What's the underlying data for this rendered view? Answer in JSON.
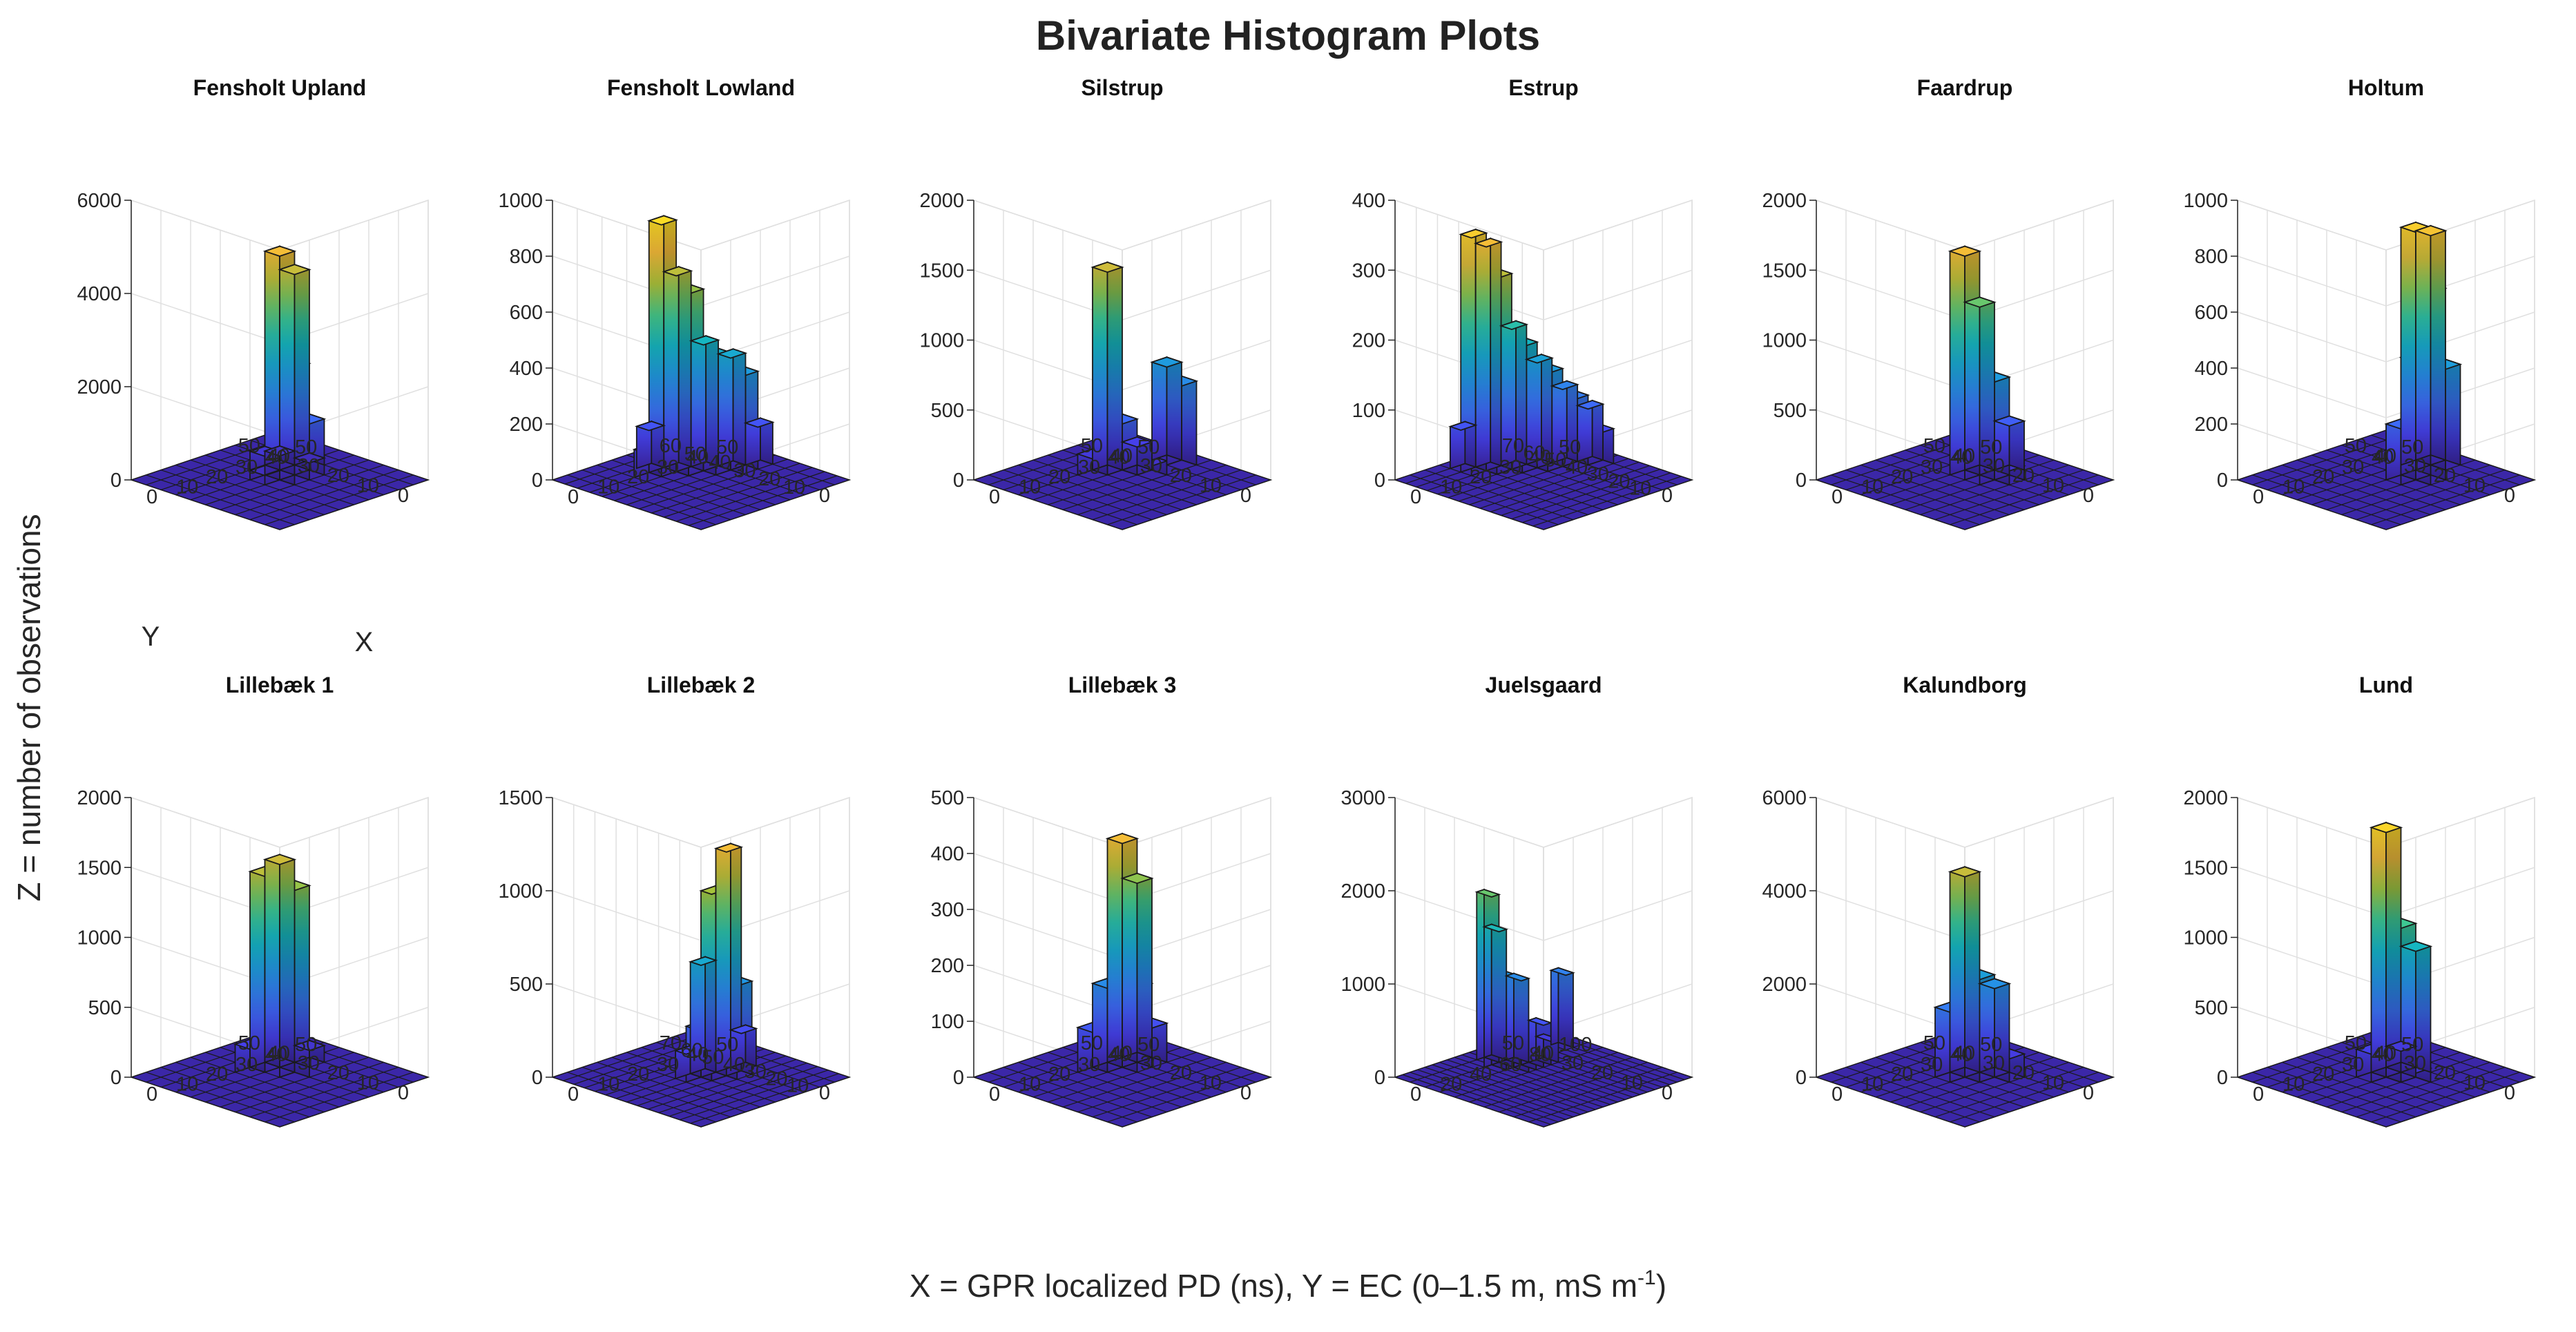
{
  "chart_data": {
    "type": "bar3d",
    "title": "Bivariate Histogram Plots",
    "xlabel": "X = GPR localized PD (ns), Y = EC (0–1.5 m, mS m",
    "xlabel_sup": "-1",
    "xlabel_close": ")",
    "ylabel": "Z = number of observations",
    "colormap": [
      "#3e26a8",
      "#4743f2",
      "#3b74f7",
      "#2196e2",
      "#14b5c4",
      "#40c98f",
      "#a6c33b",
      "#f2b63b",
      "#fbd927",
      "#f9fb0e"
    ],
    "surface_color": "#3b27a8",
    "panels": [
      {
        "title": "Fensholt Upland",
        "zlim": [
          0,
          6000
        ],
        "zticks": [
          0,
          2000,
          4000,
          6000
        ],
        "xticks": [
          0,
          10,
          20,
          30,
          40,
          50
        ],
        "yticks": [
          0,
          10,
          20,
          30,
          40,
          50
        ],
        "grid_n": [
          10,
          10
        ],
        "axis_letters": {
          "x": "X",
          "y": "Y"
        },
        "bars": [
          [
            5,
            5,
            4800
          ],
          [
            6,
            5,
            4300
          ],
          [
            5,
            4,
            2500
          ],
          [
            6,
            4,
            1200
          ],
          [
            4,
            5,
            200
          ],
          [
            5,
            6,
            400
          ],
          [
            4,
            4,
            250
          ],
          [
            6,
            6,
            300
          ],
          [
            7,
            5,
            150
          ]
        ]
      },
      {
        "title": "Fensholt Lowland",
        "zlim": [
          0,
          1000
        ],
        "zticks": [
          0,
          200,
          400,
          600,
          800,
          1000
        ],
        "xticks": [
          0,
          10,
          20,
          30,
          40,
          50
        ],
        "yticks": [
          0,
          10,
          20,
          30,
          40,
          50,
          60
        ],
        "grid_n": [
          10,
          12
        ],
        "bars": [
          [
            4,
            8,
            900
          ],
          [
            5,
            8,
            700
          ],
          [
            5,
            7,
            650
          ],
          [
            4,
            7,
            300
          ],
          [
            6,
            7,
            450
          ],
          [
            6,
            6,
            420
          ],
          [
            7,
            6,
            400
          ],
          [
            7,
            5,
            350
          ],
          [
            6,
            5,
            200
          ],
          [
            8,
            5,
            150
          ],
          [
            5,
            6,
            100
          ],
          [
            4,
            9,
            150
          ],
          [
            3,
            8,
            100
          ]
        ]
      },
      {
        "title": "Silstrup",
        "zlim": [
          0,
          2000
        ],
        "zticks": [
          0,
          500,
          1000,
          1500,
          2000
        ],
        "xticks": [
          0,
          10,
          20,
          30,
          40,
          50
        ],
        "yticks": [
          0,
          10,
          20,
          30,
          40,
          50
        ],
        "grid_n": [
          10,
          10
        ],
        "bars": [
          [
            5,
            6,
            1450
          ],
          [
            5,
            5,
            400
          ],
          [
            6,
            5,
            200
          ],
          [
            8,
            5,
            700
          ],
          [
            8,
            4,
            600
          ],
          [
            4,
            6,
            150
          ],
          [
            6,
            4,
            100
          ]
        ]
      },
      {
        "title": "Estrup",
        "zlim": [
          0,
          400
        ],
        "zticks": [
          0,
          100,
          200,
          300,
          400
        ],
        "xticks": [
          0,
          10,
          20,
          30,
          40,
          50
        ],
        "yticks": [
          0,
          10,
          20,
          30,
          40,
          50,
          60,
          70
        ],
        "grid_n": [
          10,
          14
        ],
        "bars": [
          [
            3,
            11,
            340
          ],
          [
            4,
            11,
            320
          ],
          [
            4,
            10,
            280
          ],
          [
            3,
            10,
            230
          ],
          [
            5,
            10,
            200
          ],
          [
            5,
            9,
            180
          ],
          [
            6,
            9,
            150
          ],
          [
            6,
            8,
            140
          ],
          [
            4,
            9,
            120
          ],
          [
            7,
            8,
            110
          ],
          [
            7,
            7,
            100
          ],
          [
            8,
            7,
            80
          ],
          [
            6,
            7,
            70
          ],
          [
            5,
            8,
            60
          ],
          [
            3,
            12,
            60
          ],
          [
            8,
            6,
            50
          ]
        ]
      },
      {
        "title": "Faardrup",
        "zlim": [
          0,
          2000
        ],
        "zticks": [
          0,
          500,
          1000,
          1500,
          2000
        ],
        "xticks": [
          0,
          10,
          20,
          30,
          40,
          50
        ],
        "yticks": [
          0,
          10,
          20,
          30,
          40,
          50
        ],
        "grid_n": [
          10,
          10
        ],
        "bars": [
          [
            5,
            5,
            1600
          ],
          [
            6,
            5,
            1200
          ],
          [
            6,
            4,
            700
          ],
          [
            5,
            4,
            450
          ],
          [
            7,
            4,
            350
          ],
          [
            5,
            3,
            150
          ],
          [
            6,
            3,
            100
          ]
        ]
      },
      {
        "title": "Holtum",
        "zlim": [
          0,
          1000
        ],
        "zticks": [
          0,
          200,
          400,
          600,
          800,
          1000
        ],
        "xticks": [
          0,
          10,
          20,
          30,
          40,
          50
        ],
        "yticks": [
          0,
          10,
          20,
          30,
          40,
          50
        ],
        "grid_n": [
          10,
          10
        ],
        "bars": [
          [
            7,
            5,
            850
          ],
          [
            8,
            5,
            820
          ],
          [
            7,
            4,
            650
          ],
          [
            6,
            4,
            420
          ],
          [
            8,
            4,
            360
          ],
          [
            5,
            4,
            200
          ],
          [
            6,
            3,
            150
          ],
          [
            5,
            3,
            100
          ]
        ]
      },
      {
        "title": "Lillebæk 1",
        "zlim": [
          0,
          2000
        ],
        "zticks": [
          0,
          500,
          1000,
          1500,
          2000
        ],
        "xticks": [
          0,
          10,
          20,
          30,
          40,
          50
        ],
        "yticks": [
          0,
          10,
          20,
          30,
          40,
          50
        ],
        "grid_n": [
          10,
          10
        ],
        "bars": [
          [
            5,
            6,
            1400
          ],
          [
            6,
            6,
            1450
          ],
          [
            6,
            5,
            1300
          ],
          [
            5,
            5,
            700
          ],
          [
            4,
            6,
            200
          ],
          [
            5,
            4,
            150
          ],
          [
            7,
            5,
            120
          ]
        ]
      },
      {
        "title": "Lillebæk 2",
        "zlim": [
          0,
          1500
        ],
        "zticks": [
          0,
          500,
          1000,
          1500
        ],
        "xticks": [
          0,
          10,
          20,
          30,
          40,
          50
        ],
        "yticks": [
          0,
          10,
          20,
          30,
          40,
          50,
          60,
          70
        ],
        "grid_n": [
          10,
          14
        ],
        "bars": [
          [
            6,
            6,
            1200
          ],
          [
            5,
            6,
            1000
          ],
          [
            5,
            7,
            600
          ],
          [
            6,
            5,
            500
          ],
          [
            4,
            6,
            300
          ],
          [
            5,
            5,
            250
          ],
          [
            7,
            6,
            200
          ],
          [
            4,
            7,
            150
          ]
        ]
      },
      {
        "title": "Lillebæk 3",
        "zlim": [
          0,
          500
        ],
        "zticks": [
          0,
          100,
          200,
          300,
          400,
          500
        ],
        "xticks": [
          0,
          10,
          20,
          30,
          40,
          50
        ],
        "yticks": [
          0,
          10,
          20,
          30,
          40,
          50
        ],
        "grid_n": [
          10,
          10
        ],
        "bars": [
          [
            6,
            6,
            400
          ],
          [
            7,
            6,
            320
          ],
          [
            6,
            5,
            150
          ],
          [
            5,
            6,
            150
          ],
          [
            4,
            6,
            80
          ],
          [
            7,
            5,
            70
          ],
          [
            5,
            5,
            60
          ]
        ]
      },
      {
        "title": "Juelsgaard",
        "zlim": [
          0,
          3000
        ],
        "zticks": [
          0,
          1000,
          2000,
          3000
        ],
        "xticks": [
          0,
          20,
          40,
          60,
          80,
          100
        ],
        "yticks": [
          0,
          10,
          20,
          30,
          40,
          50
        ],
        "grid_n": [
          20,
          10
        ],
        "bars": [
          [
            9,
            8,
            1800
          ],
          [
            10,
            8,
            1400
          ],
          [
            9,
            7,
            1000
          ],
          [
            11,
            7,
            900
          ],
          [
            10,
            7,
            700
          ],
          [
            8,
            7,
            500
          ],
          [
            12,
            6,
            450
          ],
          [
            11,
            6,
            300
          ],
          [
            17,
            7,
            800
          ],
          [
            13,
            6,
            250
          ],
          [
            9,
            6,
            300
          ],
          [
            10,
            6,
            200
          ]
        ]
      },
      {
        "title": "Kalundborg",
        "zlim": [
          0,
          6000
        ],
        "zticks": [
          0,
          2000,
          4000,
          6000
        ],
        "xticks": [
          0,
          10,
          20,
          30,
          40,
          50
        ],
        "yticks": [
          0,
          10,
          20,
          30,
          40,
          50
        ],
        "grid_n": [
          10,
          10
        ],
        "bars": [
          [
            5,
            5,
            4300
          ],
          [
            5,
            4,
            2200
          ],
          [
            6,
            4,
            1900
          ],
          [
            4,
            5,
            1500
          ],
          [
            4,
            4,
            900
          ],
          [
            6,
            3,
            500
          ],
          [
            5,
            3,
            300
          ]
        ]
      },
      {
        "title": "Lund",
        "zlim": [
          0,
          2000
        ],
        "zticks": [
          0,
          500,
          1000,
          1500,
          2000
        ],
        "xticks": [
          0,
          10,
          20,
          30,
          40,
          50
        ],
        "yticks": [
          0,
          10,
          20,
          30,
          40,
          50
        ],
        "grid_n": [
          10,
          10
        ],
        "bars": [
          [
            5,
            5,
            1750
          ],
          [
            5,
            4,
            1100
          ],
          [
            6,
            4,
            900
          ],
          [
            4,
            5,
            200
          ],
          [
            6,
            5,
            150
          ],
          [
            5,
            3,
            100
          ],
          [
            4,
            4,
            80
          ]
        ]
      }
    ]
  }
}
